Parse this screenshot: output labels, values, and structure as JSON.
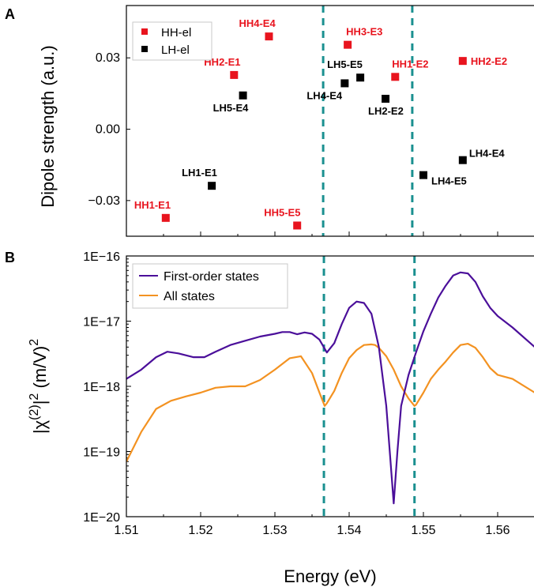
{
  "colors": {
    "hh": "#e8141e",
    "lh": "#000000",
    "first_order": "#4b0f9a",
    "all_states": "#f39221",
    "dashed": "#1a9090"
  },
  "chart_data": [
    {
      "panel_label": "A",
      "type": "scatter",
      "ylabel": "Dipole strength (a.u.)",
      "xlim": [
        1.51,
        1.565
      ],
      "ylim": [
        -0.045,
        0.052
      ],
      "yticks": [
        0.03,
        0.0,
        -0.03
      ],
      "ytick_labels": [
        "0.03",
        "0.00",
        "−0.03"
      ],
      "legend": {
        "placement": "top-left",
        "entries": [
          "HH-el",
          "LH-el"
        ]
      },
      "series": [
        {
          "name": "HH-el",
          "color_key": "hh",
          "points": [
            {
              "x": 1.5153,
              "y": -0.0373,
              "label": "HH1-E1"
            },
            {
              "x": 1.5245,
              "y": 0.0228,
              "label": "HH2-E1"
            },
            {
              "x": 1.5292,
              "y": 0.039,
              "label": "HH4-E4"
            },
            {
              "x": 1.533,
              "y": -0.0405,
              "label": "HH5-E5"
            },
            {
              "x": 1.5398,
              "y": 0.0355,
              "label": "HH3-E3"
            },
            {
              "x": 1.5462,
              "y": 0.022,
              "label": "HH1-E2"
            },
            {
              "x": 1.5553,
              "y": 0.0287,
              "label": "HH2-E2"
            }
          ]
        },
        {
          "name": "LH-el",
          "color_key": "lh",
          "points": [
            {
              "x": 1.5215,
              "y": -0.0238,
              "label": "LH1-E1"
            },
            {
              "x": 1.5257,
              "y": 0.0142,
              "label": "LH5-E4"
            },
            {
              "x": 1.5394,
              "y": 0.0193,
              "label": "LH4-E4"
            },
            {
              "x": 1.5415,
              "y": 0.0217,
              "label": "LH5-E5"
            },
            {
              "x": 1.5449,
              "y": 0.0128,
              "label": "LH2-E2"
            },
            {
              "x": 1.55,
              "y": -0.0193,
              "label": "LH4-E5"
            },
            {
              "x": 1.5553,
              "y": -0.013,
              "label": "LH4-E4"
            }
          ]
        }
      ],
      "vlines": [
        1.5365,
        1.5485
      ]
    },
    {
      "panel_label": "B",
      "type": "line",
      "xlabel": "Energy (eV)",
      "ylabel": "|χ(2)|2 (m/V)2",
      "xlim": [
        1.51,
        1.565
      ],
      "yscale": "log",
      "ylim": [
        1e-20,
        1e-16
      ],
      "yticks": [
        1e-16,
        1e-17,
        1e-18,
        1e-19,
        1e-20
      ],
      "ytick_labels": [
        "1E−16",
        "1E−17",
        "1E−18",
        "1E−19",
        "1E−20"
      ],
      "xticks": [
        1.51,
        1.52,
        1.53,
        1.54,
        1.55,
        1.56
      ],
      "xtick_labels": [
        "1.51",
        "1.52",
        "1.53",
        "1.54",
        "1.55",
        "1.56"
      ],
      "legend": {
        "placement": "top-left",
        "entries": [
          "First-order states",
          "All states"
        ]
      },
      "vlines": [
        1.5366,
        1.5488
      ],
      "series": [
        {
          "name": "First-order states",
          "color_key": "first_order",
          "x": [
            1.51,
            1.512,
            1.514,
            1.5155,
            1.517,
            1.519,
            1.5205,
            1.522,
            1.524,
            1.526,
            1.528,
            1.53,
            1.531,
            1.532,
            1.533,
            1.534,
            1.535,
            1.536,
            1.537,
            1.538,
            1.539,
            1.54,
            1.541,
            1.542,
            1.543,
            1.544,
            1.545,
            1.5455,
            1.546,
            1.5465,
            1.547,
            1.548,
            1.549,
            1.55,
            1.551,
            1.552,
            1.553,
            1.554,
            1.555,
            1.556,
            1.557,
            1.558,
            1.559,
            1.56,
            1.562,
            1.565
          ],
          "y": [
            1.3e-18,
            1.8e-18,
            2.8e-18,
            3.4e-18,
            3.2e-18,
            2.8e-18,
            2.8e-18,
            3.4e-18,
            4.3e-18,
            5e-18,
            5.8e-18,
            6.4e-18,
            6.8e-18,
            6.8e-18,
            6.3e-18,
            6.7e-18,
            6.4e-18,
            5.2e-18,
            3.3e-18,
            4.6e-18,
            9e-18,
            1.6e-17,
            2e-17,
            1.9e-17,
            1.3e-17,
            4e-18,
            5e-19,
            9e-20,
            1.6e-20,
            1e-19,
            5e-19,
            1.5e-18,
            3.3e-18,
            7e-18,
            1.3e-17,
            2.3e-17,
            3.5e-17,
            5e-17,
            5.6e-17,
            5.4e-17,
            4e-17,
            2.4e-17,
            1.6e-17,
            1.2e-17,
            8e-18,
            4e-18
          ]
        },
        {
          "name": "All states",
          "color_key": "all_states",
          "x": [
            1.51,
            1.512,
            1.514,
            1.516,
            1.518,
            1.52,
            1.522,
            1.524,
            1.526,
            1.528,
            1.53,
            1.532,
            1.5335,
            1.535,
            1.536,
            1.5367,
            1.537,
            1.538,
            1.539,
            1.54,
            1.541,
            1.542,
            1.543,
            1.5435,
            1.544,
            1.545,
            1.546,
            1.547,
            1.548,
            1.5488,
            1.549,
            1.55,
            1.551,
            1.552,
            1.553,
            1.554,
            1.555,
            1.556,
            1.557,
            1.558,
            1.559,
            1.56,
            1.562,
            1.565
          ],
          "y": [
            7e-20,
            2e-19,
            4.5e-19,
            6e-19,
            7e-19,
            8e-19,
            9.5e-19,
            1e-18,
            1e-18,
            1.25e-18,
            1.8e-18,
            2.7e-18,
            2.9e-18,
            1.6e-18,
            8e-19,
            5e-19,
            5.5e-19,
            8.5e-19,
            1.6e-18,
            2.7e-18,
            3.6e-18,
            4.3e-18,
            4.4e-18,
            4.3e-18,
            3.9e-18,
            2.9e-18,
            1.8e-18,
            1e-18,
            6.5e-19,
            5e-19,
            5.2e-19,
            8e-19,
            1.3e-18,
            1.8e-18,
            2.4e-18,
            3.3e-18,
            4.3e-18,
            4.5e-18,
            3.9e-18,
            2.8e-18,
            1.9e-18,
            1.5e-18,
            1.3e-18,
            8e-19
          ]
        }
      ]
    }
  ]
}
